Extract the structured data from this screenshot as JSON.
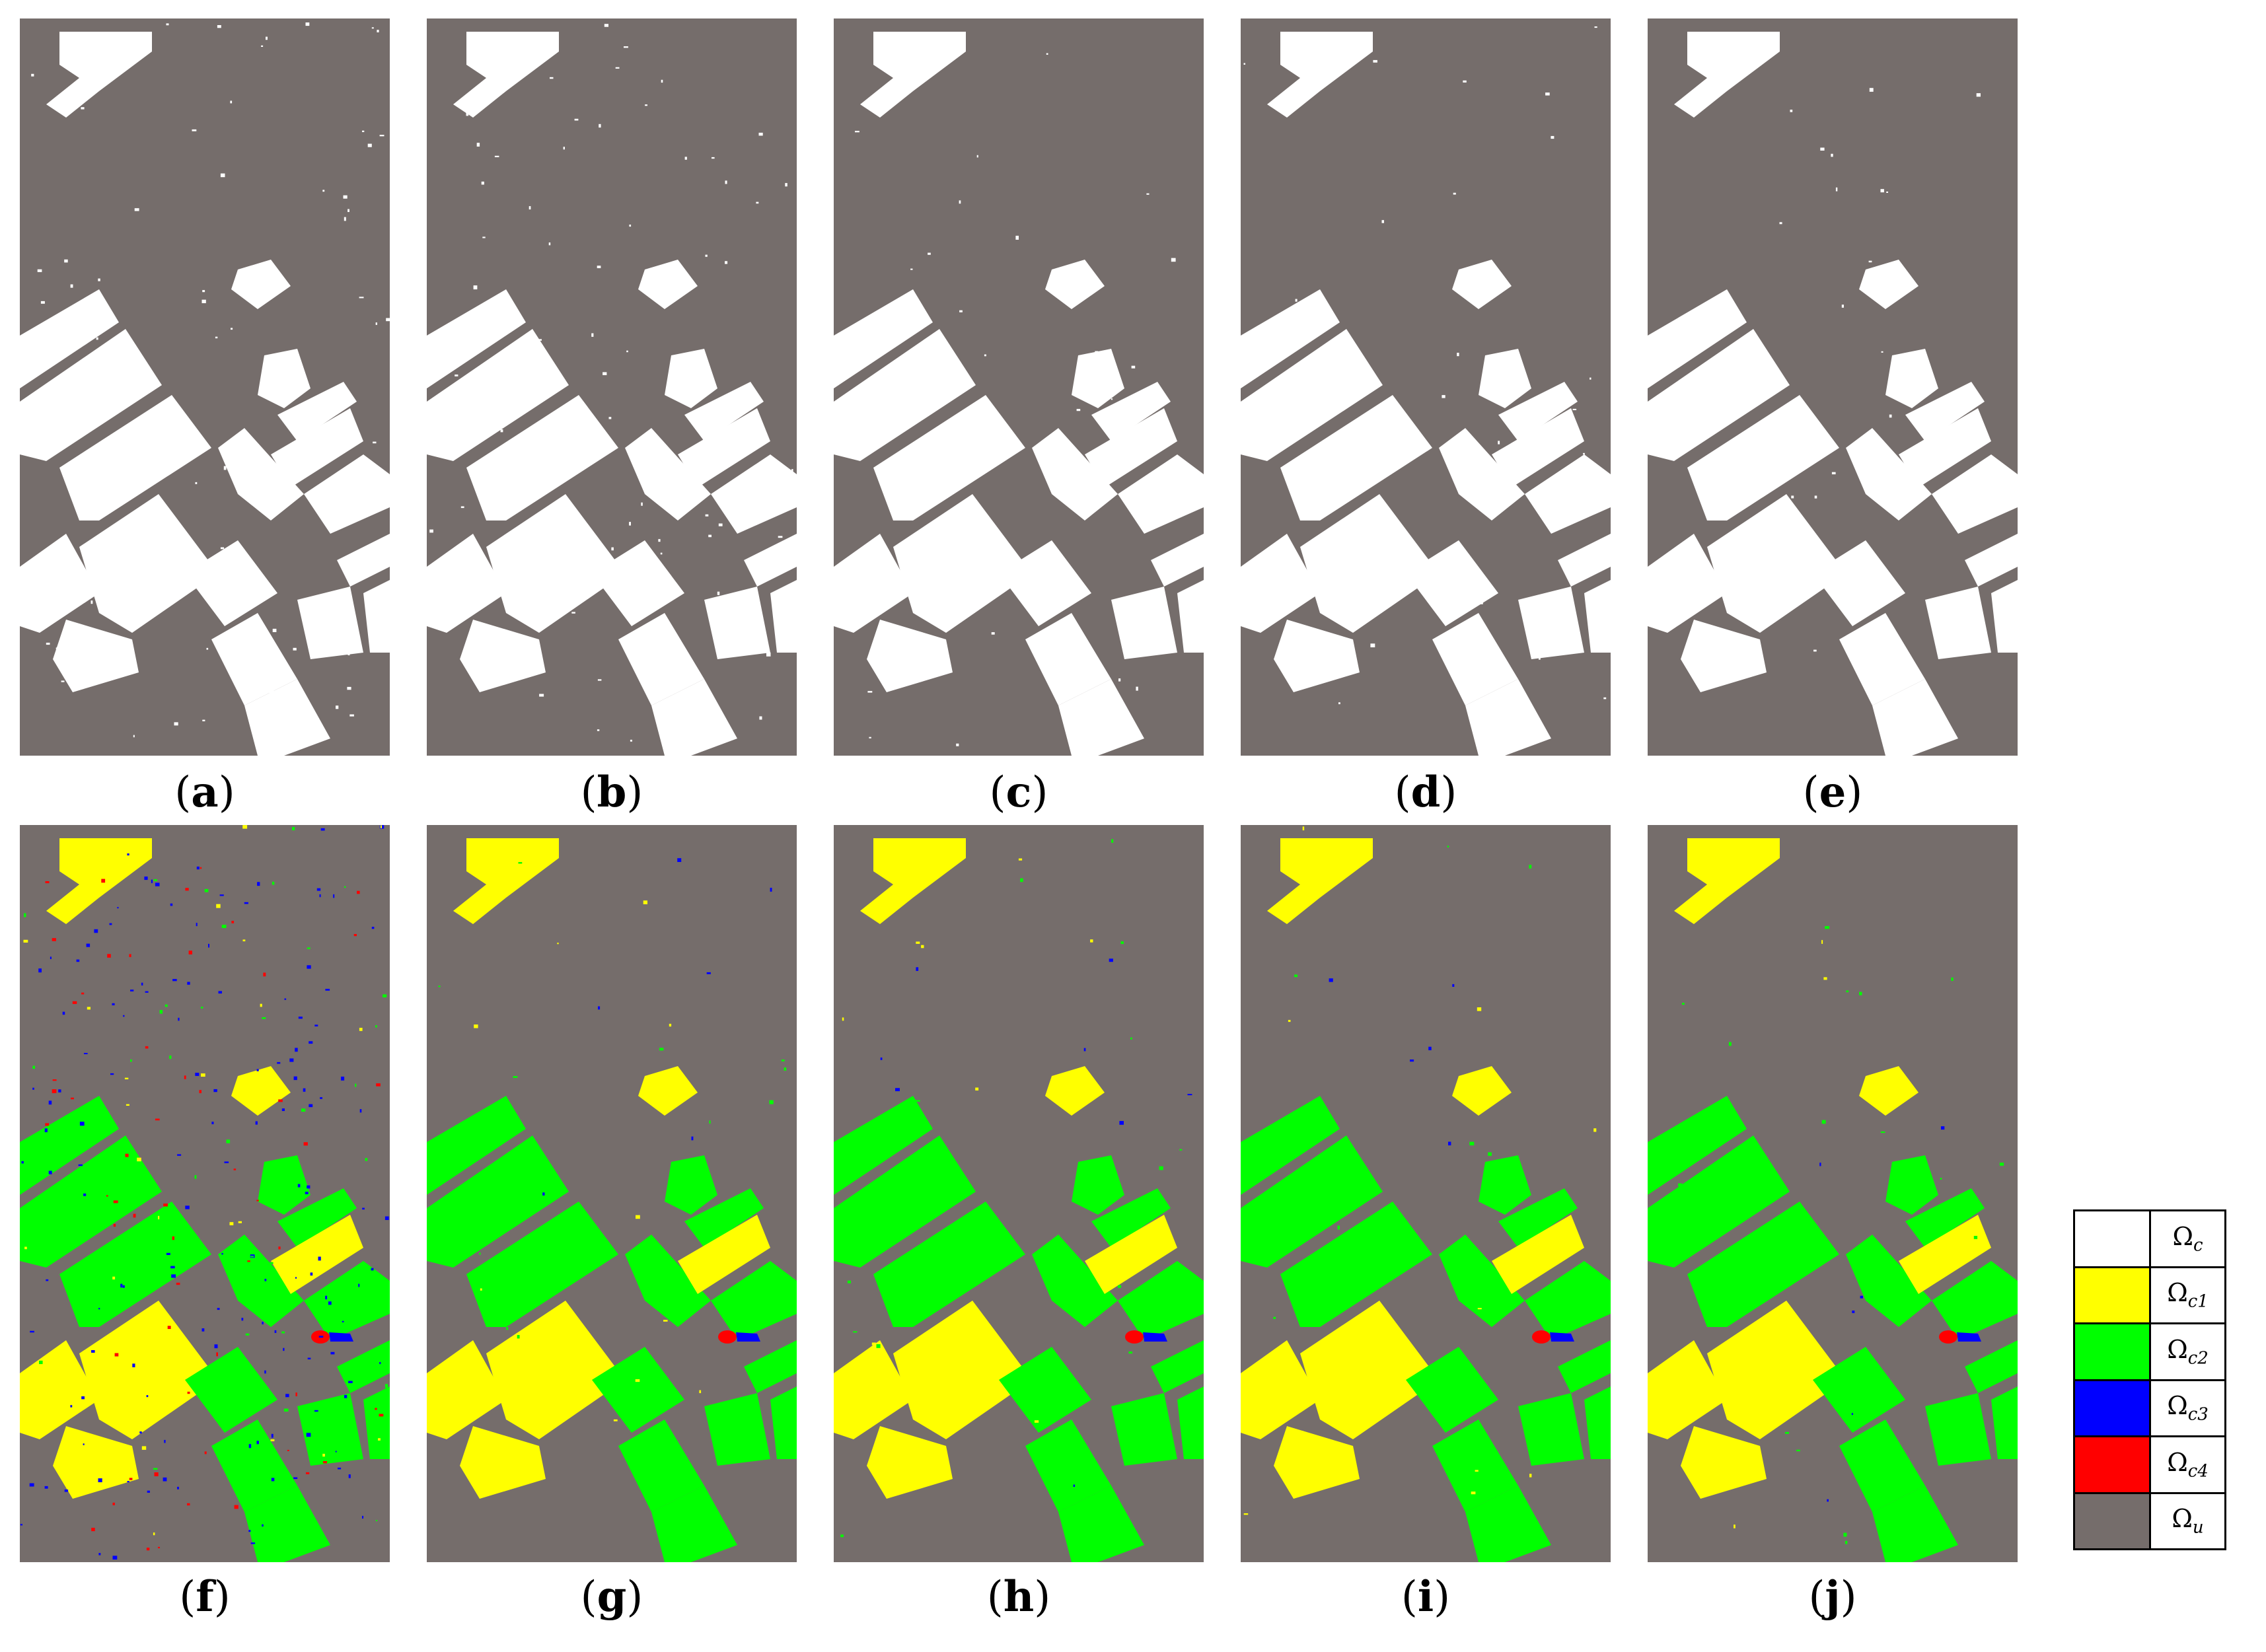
{
  "panels": [
    {
      "id": "a",
      "caption": "a",
      "scheme": "binary",
      "noise": "medium"
    },
    {
      "id": "b",
      "caption": "b",
      "scheme": "binary",
      "noise": "medium"
    },
    {
      "id": "c",
      "caption": "c",
      "scheme": "binary",
      "noise": "low"
    },
    {
      "id": "d",
      "caption": "d",
      "scheme": "binary",
      "noise": "low"
    },
    {
      "id": "e",
      "caption": "e",
      "scheme": "binary",
      "noise": "low"
    },
    {
      "id": "f",
      "caption": "f",
      "scheme": "multiclass",
      "noise": "high"
    },
    {
      "id": "g",
      "caption": "g",
      "scheme": "multiclass",
      "noise": "low"
    },
    {
      "id": "h",
      "caption": "h",
      "scheme": "multiclass",
      "noise": "low"
    },
    {
      "id": "i",
      "caption": "i",
      "scheme": "multiclass",
      "noise": "low"
    },
    {
      "id": "j",
      "caption": "j",
      "scheme": "multiclass",
      "noise": "low"
    }
  ],
  "legend": [
    {
      "symbol": "Ω",
      "sub": "c",
      "color": "#ffffff"
    },
    {
      "symbol": "Ω",
      "sub": "c1",
      "color": "#ffff00"
    },
    {
      "symbol": "Ω",
      "sub": "c2",
      "color": "#00ff00"
    },
    {
      "symbol": "Ω",
      "sub": "c3",
      "color": "#0000ff"
    },
    {
      "symbol": "Ω",
      "sub": "c4",
      "color": "#ff0000"
    },
    {
      "symbol": "Ω",
      "sub": "u",
      "color": "#756d6b"
    }
  ],
  "colors": {
    "background": "#756d6b",
    "changed": "#ffffff",
    "c1": "#ffff00",
    "c2": "#00ff00",
    "c3": "#0000ff",
    "c4": "#ff0000"
  }
}
